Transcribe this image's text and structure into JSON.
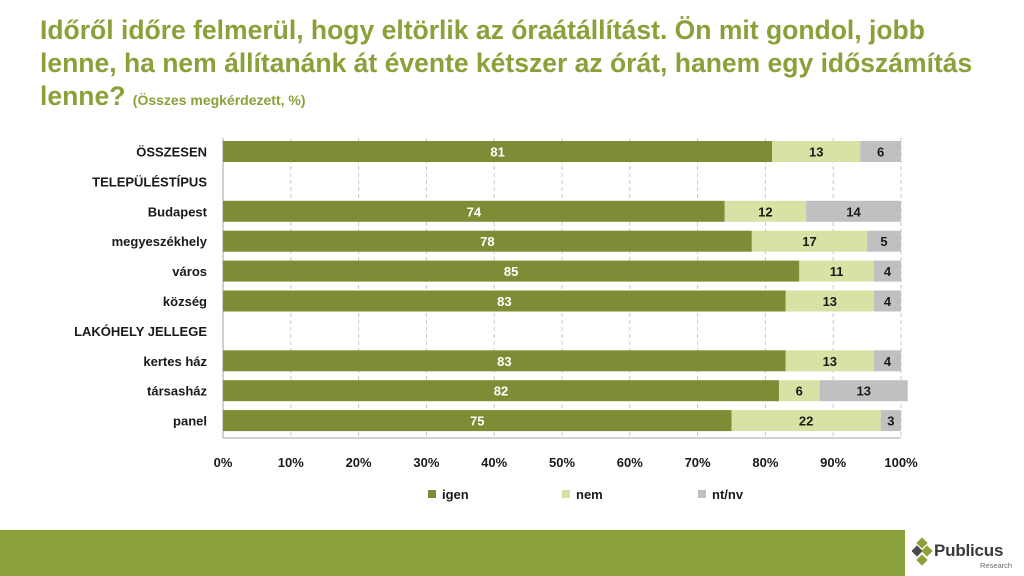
{
  "title": {
    "main": "Időről időre felmerül, hogy eltörlik az óraátállítást. Ön mit gondol, jobb lenne, ha nem állítanánk át évente kétszer az órát, hanem egy időszámítás lenne?",
    "sub": "(Összes megkérdezett, %)"
  },
  "colors": {
    "igen": "#7f8c35",
    "nem": "#d6e3a5",
    "ntnv": "#c0c0c0",
    "accent": "#8aa139"
  },
  "chart_data": {
    "type": "bar",
    "orientation": "horizontal",
    "stacked": true,
    "xlim": [
      0,
      100
    ],
    "xticks": [
      "0%",
      "10%",
      "20%",
      "30%",
      "40%",
      "50%",
      "60%",
      "70%",
      "80%",
      "90%",
      "100%"
    ],
    "categories": [
      "ÖSSZESEN",
      "TELEPÜLÉSTÍPUS",
      "Budapest",
      "megyeszékhely",
      "város",
      "község",
      "LAKÓHELY JELLEGE",
      "kertes ház",
      "társasház",
      "panel"
    ],
    "series": [
      {
        "name": "igen",
        "values": [
          81,
          null,
          74,
          78,
          85,
          83,
          null,
          83,
          82,
          75
        ]
      },
      {
        "name": "nem",
        "values": [
          13,
          null,
          12,
          17,
          11,
          13,
          null,
          13,
          6,
          22
        ]
      },
      {
        "name": "nt/nv",
        "values": [
          6,
          null,
          14,
          5,
          4,
          4,
          null,
          4,
          13,
          3
        ]
      }
    ],
    "legend_position": "bottom"
  },
  "logo": {
    "name": "Publicus",
    "tagline": "Research"
  }
}
